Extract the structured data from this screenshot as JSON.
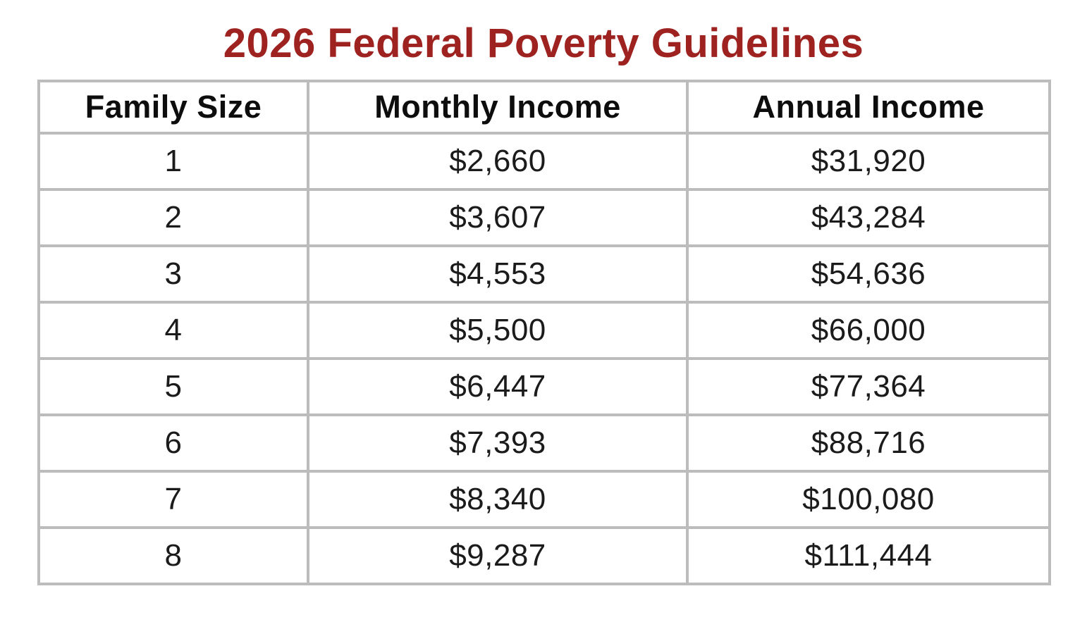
{
  "title": {
    "text": "2026 Federal Poverty Guidelines",
    "color": "#9e2320"
  },
  "table": {
    "border_color": "#bcbcbc",
    "headers": [
      "Family Size",
      "Monthly Income",
      "Annual Income"
    ],
    "rows": [
      [
        "1",
        "$2,660",
        "$31,920"
      ],
      [
        "2",
        "$3,607",
        "$43,284"
      ],
      [
        "3",
        "$4,553",
        "$54,636"
      ],
      [
        "4",
        "$5,500",
        "$66,000"
      ],
      [
        "5",
        "$6,447",
        "$77,364"
      ],
      [
        "6",
        "$7,393",
        "$88,716"
      ],
      [
        "7",
        "$8,340",
        "$100,080"
      ],
      [
        "8",
        "$9,287",
        "$111,444"
      ]
    ]
  },
  "chart_data": {
    "type": "table",
    "title": "2026 Federal Poverty Guidelines",
    "columns": [
      "Family Size",
      "Monthly Income",
      "Annual Income"
    ],
    "rows": [
      [
        1,
        2660,
        31920
      ],
      [
        2,
        3607,
        43284
      ],
      [
        3,
        4553,
        54636
      ],
      [
        4,
        5500,
        66000
      ],
      [
        5,
        6447,
        77364
      ],
      [
        6,
        7393,
        88716
      ],
      [
        7,
        8340,
        100080
      ],
      [
        8,
        9287,
        111444
      ]
    ]
  }
}
